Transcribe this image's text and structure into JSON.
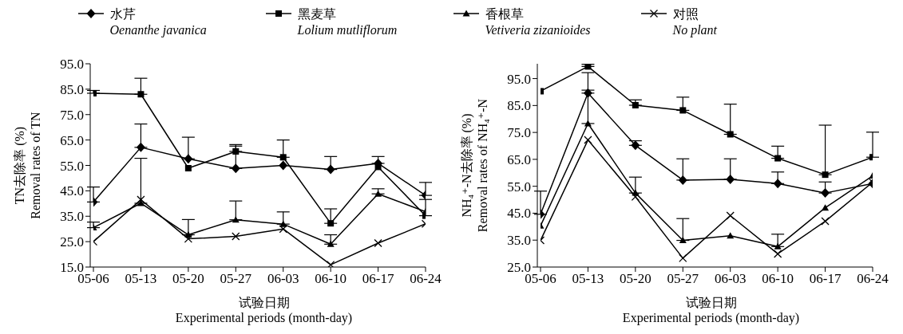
{
  "chart_data": [
    {
      "type": "line",
      "xlabel": "试验日期\nExperimental periods (month-day)",
      "ylabel": "TN去除率 (%)\nRemoval rates of  TN",
      "categories": [
        "05-06",
        "05-13",
        "05-20",
        "05-27",
        "06-03",
        "06-10",
        "06-17",
        "06-24"
      ],
      "ylim": [
        15,
        95
      ],
      "yticks": [
        {
          "value": 15,
          "label": "15.0"
        },
        {
          "value": 25,
          "label": "25.0"
        },
        {
          "value": 35,
          "label": "35.0"
        },
        {
          "value": 45,
          "label": "45.0"
        },
        {
          "value": 55,
          "label": "55.0"
        },
        {
          "value": 65,
          "label": "65.0"
        },
        {
          "value": 75,
          "label": "75.0"
        },
        {
          "value": 85,
          "label": "85.0"
        },
        {
          "value": 95,
          "label": "95.0"
        }
      ],
      "grid": false,
      "legend": "top",
      "line_style": "solid",
      "series": [
        {
          "name": "水芹\nOenanthe javanica",
          "color": "#000000",
          "marker": "diamond",
          "values": [
            40.6,
            62.1,
            57.6,
            53.8,
            55.0,
            53.4,
            55.8,
            43.2
          ],
          "errors": [
            [
              40.6,
              46.5
            ],
            [
              62.1,
              71.3
            ],
            [
              57.6,
              66.1
            ],
            [
              53.8,
              62.6
            ],
            null,
            [
              53.4,
              58.5
            ],
            [
              55.8,
              58.5
            ],
            [
              43.2,
              48.3
            ]
          ]
        },
        {
          "name": "黑麦草\nLolium mutliflorum",
          "color": "#000000",
          "marker": "square",
          "values": [
            83.4,
            83.0,
            53.9,
            60.5,
            58.2,
            32.2,
            54.4,
            35.2
          ],
          "errors": [
            [
              83.4,
              84.5
            ],
            [
              83.0,
              89.3
            ],
            null,
            [
              60.5,
              63.2
            ],
            [
              58.2,
              65.0
            ],
            [
              32.2,
              37.9
            ],
            null,
            [
              35.2,
              41.6
            ]
          ]
        },
        {
          "name": "香根草\nVetiveria zizanioides",
          "color": "#000000",
          "marker": "triangle",
          "values": [
            30.5,
            40.1,
            27.7,
            33.6,
            31.9,
            24.0,
            43.8,
            36.8
          ],
          "errors": [
            [
              30.5,
              32.7
            ],
            [
              40.1,
              57.8
            ],
            [
              27.7,
              33.7
            ],
            [
              33.6,
              41.0
            ],
            [
              31.9,
              36.7
            ],
            [
              24.0,
              27.7
            ],
            [
              43.8,
              45.8
            ],
            null
          ]
        },
        {
          "name": "对照\nNo plant",
          "color": "#000000",
          "marker": "cross",
          "values": [
            25.0,
            41.5,
            26.1,
            27.1,
            30.0,
            15.9,
            24.4,
            32.0
          ]
        }
      ]
    },
    {
      "type": "line",
      "xlabel": "试验日期\nExperimental periods (month-day)",
      "ylabel": "NH₄⁺-N去除率 (%)\nRemoval rates of NH₄⁺-N",
      "categories": [
        "05-06",
        "05-13",
        "05-20",
        "05-27",
        "06-03",
        "06-10",
        "06-17",
        "06-24"
      ],
      "ylim": [
        25,
        100.5
      ],
      "yticks": [
        {
          "value": 25,
          "label": "25.0"
        },
        {
          "value": 35,
          "label": "35.0"
        },
        {
          "value": 45,
          "label": "45.0"
        },
        {
          "value": 55,
          "label": "55.0"
        },
        {
          "value": 65,
          "label": "65.0"
        },
        {
          "value": 75,
          "label": "75.0"
        },
        {
          "value": 85,
          "label": "85.0"
        },
        {
          "value": 95,
          "label": "95.0"
        }
      ],
      "grid": false,
      "line_style": "solid",
      "series": [
        {
          "color": "#000000",
          "marker": "diamond",
          "values": [
            44.6,
            89.6,
            70.2,
            57.3,
            57.6,
            56.0,
            52.5,
            56.0
          ],
          "errors": [
            [
              44.6,
              53.2
            ],
            [
              89.6,
              97.2
            ],
            [
              70.2,
              71.9
            ],
            [
              57.3,
              65.2
            ],
            [
              57.6,
              65.2
            ],
            [
              56.0,
              60.3
            ],
            [
              52.5,
              56.6
            ],
            null
          ]
        },
        {
          "color": "#000000",
          "marker": "square",
          "values": [
            90.3,
            99.5,
            85.1,
            83.2,
            74.3,
            65.4,
            59.3,
            65.8
          ],
          "errors": [
            null,
            [
              99.5,
              100.3
            ],
            [
              85.1,
              87.1
            ],
            [
              83.2,
              88.1
            ],
            [
              74.3,
              85.5
            ],
            [
              65.4,
              69.9
            ],
            [
              59.3,
              77.7
            ],
            [
              65.8,
              75.1
            ]
          ]
        },
        {
          "color": "#000000",
          "marker": "triangle",
          "values": [
            40.3,
            78.3,
            52.5,
            34.9,
            36.6,
            32.6,
            47.0,
            58.9
          ],
          "errors": [
            null,
            [
              78.3,
              90.7
            ],
            [
              52.5,
              58.4
            ],
            [
              34.9,
              43.0
            ],
            null,
            [
              32.6,
              37.2
            ],
            null,
            null
          ]
        },
        {
          "color": "#000000",
          "marker": "cross",
          "values": [
            34.9,
            72.2,
            51.1,
            28.3,
            44.1,
            29.9,
            42.0,
            56.5
          ]
        }
      ]
    }
  ]
}
